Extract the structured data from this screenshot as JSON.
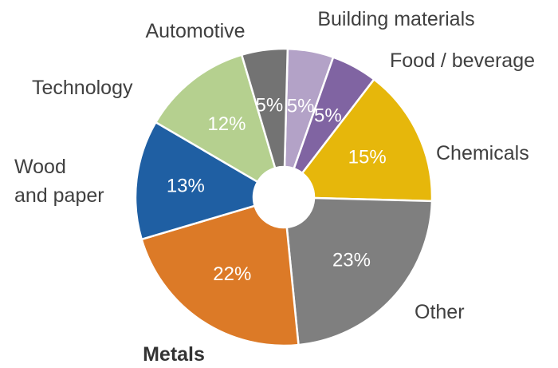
{
  "chart_data": {
    "type": "pie",
    "title": "",
    "donut": true,
    "slices": [
      {
        "name": "Building materials",
        "value": 5,
        "value_label": "5%",
        "color": "#b3a2c7",
        "bold": false
      },
      {
        "name": "Food / beverage",
        "value": 5,
        "value_label": "5%",
        "color": "#8064a2",
        "bold": false
      },
      {
        "name": "Chemicals",
        "value": 15,
        "value_label": "15%",
        "color": "#e6b70b",
        "bold": false
      },
      {
        "name": "Other",
        "value": 23,
        "value_label": "23%",
        "color": "#7f7f7f",
        "bold": false
      },
      {
        "name": "Metals",
        "value": 22,
        "value_label": "22%",
        "color": "#dc7a27",
        "bold": true
      },
      {
        "name": "Wood\nand paper",
        "value": 13,
        "value_label": "13%",
        "color": "#1f5fa3",
        "bold": false
      },
      {
        "name": "Technology",
        "value": 12,
        "value_label": "12%",
        "color": "#b5d08f",
        "bold": false
      },
      {
        "name": "Automotive",
        "value": 5,
        "value_label": "5%",
        "color": "#737373",
        "bold": false
      }
    ]
  }
}
